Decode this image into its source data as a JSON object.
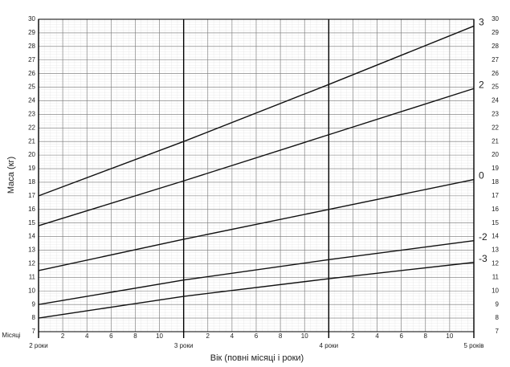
{
  "chart_data": {
    "type": "line",
    "ylabel": "Маса (кг)",
    "xlabel": "Вік (повні місяці і роки)",
    "month_axis_label": "Місяці",
    "x": [
      24,
      36,
      48,
      60
    ],
    "xlim": [
      24,
      60
    ],
    "ylim": [
      7,
      30
    ],
    "yticks": [
      7,
      8,
      9,
      10,
      11,
      12,
      13,
      14,
      15,
      16,
      17,
      18,
      19,
      20,
      21,
      22,
      23,
      24,
      25,
      26,
      27,
      28,
      29,
      30
    ],
    "year_ticks": [
      {
        "value": 24,
        "label": "2 роки"
      },
      {
        "value": 36,
        "label": "3 роки"
      },
      {
        "value": 48,
        "label": "4 роки"
      },
      {
        "value": 60,
        "label": "5 років"
      }
    ],
    "month_ticks": [
      {
        "value": 26,
        "label": "2"
      },
      {
        "value": 28,
        "label": "4"
      },
      {
        "value": 30,
        "label": "6"
      },
      {
        "value": 32,
        "label": "8"
      },
      {
        "value": 34,
        "label": "10"
      },
      {
        "value": 38,
        "label": "2"
      },
      {
        "value": 40,
        "label": "4"
      },
      {
        "value": 42,
        "label": "6"
      },
      {
        "value": 44,
        "label": "8"
      },
      {
        "value": 46,
        "label": "10"
      },
      {
        "value": 50,
        "label": "2"
      },
      {
        "value": 52,
        "label": "4"
      },
      {
        "value": 54,
        "label": "6"
      },
      {
        "value": 56,
        "label": "8"
      },
      {
        "value": 58,
        "label": "10"
      }
    ],
    "grid": true,
    "series": [
      {
        "name": "3",
        "color": "#111",
        "values": [
          17.0,
          21.0,
          25.2,
          29.5
        ]
      },
      {
        "name": "2",
        "color": "#111",
        "values": [
          14.8,
          18.1,
          21.5,
          24.9
        ]
      },
      {
        "name": "0",
        "color": "#111",
        "values": [
          11.5,
          13.8,
          16.0,
          18.2
        ]
      },
      {
        "name": "-2",
        "color": "#111",
        "values": [
          9.0,
          10.8,
          12.3,
          13.7
        ]
      },
      {
        "name": "-3",
        "color": "#111",
        "values": [
          8.0,
          9.6,
          10.9,
          12.1
        ]
      }
    ]
  }
}
